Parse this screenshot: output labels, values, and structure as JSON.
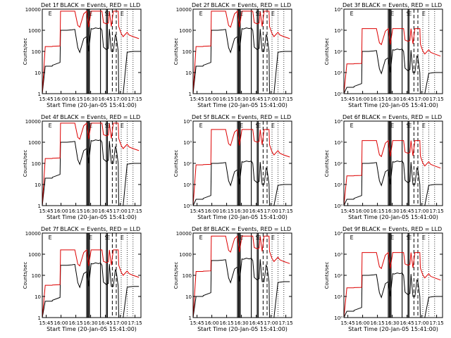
{
  "figure": {
    "layout": "3x3 grid of detector light curves"
  },
  "chart_data": [
    {
      "type": "line",
      "title": "Det 1f BLACK = Events, RED = LLD",
      "scale": "A",
      "events_level": 1,
      "lld_level": 1,
      "events_trace": [
        0,
        20,
        20,
        22,
        30,
        1000,
        1000,
        1050,
        1100,
        150,
        90,
        400,
        500,
        100,
        1200,
        1150,
        1300,
        1200,
        1300,
        1000,
        160,
        120,
        140,
        1150,
        100,
        100,
        600,
        500,
        100,
        1,
        1,
        1,
        90,
        95,
        100,
        100
      ],
      "lld_trace": [
        0,
        170,
        170,
        175,
        180,
        8000,
        8000,
        8000,
        8000,
        1700,
        1400,
        6000,
        8000,
        1400,
        8000,
        8000,
        8000,
        8000,
        8000,
        8000,
        2300,
        2000,
        2200,
        8000,
        1500,
        8000,
        8000,
        8000,
        8000,
        1500,
        700,
        500,
        800,
        600,
        500,
        400
      ]
    },
    {
      "type": "line",
      "title": "Det 2f BLACK = Events, RED = LLD",
      "scale": "A",
      "events_level": 1,
      "lld_level": 1,
      "events_trace": [
        0,
        20,
        20,
        22,
        30,
        1000,
        1000,
        1050,
        1100,
        150,
        90,
        400,
        500,
        100,
        1200,
        1150,
        1300,
        1200,
        1300,
        1000,
        160,
        120,
        140,
        1150,
        100,
        100,
        600,
        500,
        100,
        1,
        1,
        1,
        90,
        95,
        100,
        100
      ],
      "lld_trace": [
        0,
        170,
        170,
        175,
        180,
        8000,
        8000,
        8000,
        8000,
        1700,
        1400,
        6000,
        8000,
        1400,
        8000,
        8000,
        8000,
        8000,
        8000,
        8000,
        2300,
        2000,
        2200,
        8000,
        1500,
        8000,
        8000,
        8000,
        8000,
        1500,
        700,
        500,
        800,
        600,
        500,
        400
      ]
    },
    {
      "type": "line",
      "title": "Det 3f BLACK = Events, RED = LLD",
      "scale": "B",
      "events_level": 0.1,
      "lld_level": 0.15,
      "events_trace": [
        0,
        20,
        20,
        22,
        30,
        1000,
        1000,
        1050,
        1100,
        150,
        90,
        400,
        500,
        100,
        1200,
        1150,
        1300,
        1200,
        1300,
        1000,
        160,
        120,
        140,
        1150,
        100,
        100,
        600,
        500,
        100,
        1,
        1,
        1,
        90,
        95,
        100,
        100
      ],
      "lld_trace": [
        0,
        170,
        170,
        175,
        180,
        8000,
        8000,
        8000,
        8000,
        1700,
        1400,
        6000,
        8000,
        1400,
        8000,
        8000,
        8000,
        8000,
        8000,
        8000,
        2300,
        2000,
        2200,
        8000,
        1500,
        8000,
        8000,
        8000,
        8000,
        1500,
        700,
        500,
        800,
        600,
        500,
        400
      ]
    },
    {
      "type": "line",
      "title": "Det 4f BLACK = Events, RED = LLD",
      "scale": "A",
      "events_level": 1,
      "lld_level": 1,
      "events_trace": [
        0,
        20,
        20,
        22,
        30,
        1000,
        1000,
        1050,
        1100,
        150,
        90,
        400,
        500,
        100,
        1200,
        1150,
        1300,
        1200,
        1300,
        1000,
        160,
        120,
        140,
        1150,
        100,
        100,
        600,
        500,
        100,
        1,
        1,
        1,
        90,
        95,
        100,
        100
      ],
      "lld_trace": [
        0,
        170,
        170,
        175,
        180,
        8000,
        8000,
        8000,
        8000,
        1700,
        1400,
        6000,
        8000,
        1400,
        8000,
        8000,
        8000,
        8000,
        8000,
        8000,
        2300,
        2000,
        2200,
        8000,
        1500,
        8000,
        8000,
        8000,
        8000,
        1500,
        700,
        500,
        800,
        600,
        500,
        400
      ]
    },
    {
      "type": "line",
      "title": "Det 5f BLACK = Events, RED = LLD",
      "scale": "B",
      "events_level": 0.1,
      "lld_level": 0.5,
      "events_trace": [
        0,
        20,
        20,
        22,
        30,
        1000,
        1000,
        1050,
        1100,
        150,
        90,
        400,
        500,
        100,
        1200,
        1150,
        1300,
        1200,
        1300,
        1000,
        160,
        120,
        140,
        1150,
        100,
        100,
        600,
        500,
        100,
        1,
        1,
        1,
        90,
        95,
        100,
        100
      ],
      "lld_trace": [
        0,
        170,
        170,
        175,
        180,
        8000,
        8000,
        8000,
        8000,
        1700,
        1400,
        6000,
        8000,
        1400,
        8000,
        8000,
        8000,
        8000,
        8000,
        8000,
        2300,
        2000,
        2200,
        8000,
        1500,
        8000,
        8000,
        8000,
        8000,
        1500,
        700,
        500,
        800,
        600,
        500,
        400
      ]
    },
    {
      "type": "line",
      "title": "Det 6f BLACK = Events, RED = LLD",
      "scale": "B",
      "events_level": 0.1,
      "lld_level": 0.15,
      "events_trace": [
        0,
        20,
        20,
        22,
        30,
        1000,
        1000,
        1050,
        1100,
        150,
        90,
        400,
        500,
        100,
        1200,
        1150,
        1300,
        1200,
        1300,
        1000,
        160,
        120,
        140,
        1150,
        100,
        100,
        600,
        500,
        100,
        1,
        1,
        1,
        90,
        95,
        100,
        100
      ],
      "lld_trace": [
        0,
        170,
        170,
        175,
        180,
        8000,
        8000,
        8000,
        8000,
        1700,
        1400,
        6000,
        8000,
        1400,
        8000,
        8000,
        8000,
        8000,
        8000,
        8000,
        2300,
        2000,
        2200,
        8000,
        1500,
        8000,
        8000,
        8000,
        8000,
        1500,
        700,
        500,
        800,
        600,
        500,
        400
      ]
    },
    {
      "type": "line",
      "title": "Det 7f BLACK = Events, RED = LLD",
      "scale": "A",
      "events_level": 0.3,
      "lld_level": 0.2,
      "events_trace": [
        0,
        20,
        20,
        22,
        30,
        1000,
        1000,
        1050,
        1100,
        150,
        90,
        400,
        500,
        100,
        1200,
        1150,
        1300,
        1200,
        1300,
        1000,
        160,
        120,
        140,
        1150,
        100,
        100,
        600,
        500,
        100,
        1,
        1,
        1,
        90,
        95,
        100,
        100
      ],
      "lld_trace": [
        0,
        170,
        170,
        175,
        180,
        8000,
        8000,
        8000,
        8000,
        1700,
        1400,
        6000,
        8000,
        1400,
        8000,
        8000,
        8000,
        8000,
        8000,
        8000,
        2300,
        2000,
        2200,
        8000,
        1500,
        8000,
        8000,
        8000,
        8000,
        1500,
        700,
        500,
        800,
        600,
        500,
        400
      ]
    },
    {
      "type": "line",
      "title": "Det 8f BLACK = Events, RED = LLD",
      "scale": "A",
      "events_level": 0.5,
      "lld_level": 0.9,
      "events_trace": [
        0,
        20,
        20,
        22,
        30,
        1000,
        1000,
        1050,
        1100,
        150,
        90,
        400,
        500,
        100,
        1200,
        1150,
        1300,
        1200,
        1300,
        1000,
        160,
        120,
        140,
        1150,
        100,
        100,
        600,
        500,
        100,
        1,
        1,
        1,
        90,
        95,
        100,
        100
      ],
      "lld_trace": [
        0,
        170,
        170,
        175,
        180,
        8000,
        8000,
        8000,
        8000,
        1700,
        1400,
        6000,
        8000,
        1400,
        8000,
        8000,
        8000,
        8000,
        8000,
        8000,
        2300,
        2000,
        2200,
        8000,
        1500,
        8000,
        8000,
        8000,
        8000,
        1500,
        700,
        500,
        800,
        600,
        500,
        400
      ]
    },
    {
      "type": "line",
      "title": "Det 9f BLACK = Events, RED = LLD",
      "scale": "B",
      "events_level": 0.1,
      "lld_level": 0.15,
      "events_trace": [
        0,
        20,
        20,
        22,
        30,
        1000,
        1000,
        1050,
        1100,
        150,
        90,
        400,
        500,
        100,
        1200,
        1150,
        1300,
        1200,
        1300,
        1000,
        160,
        120,
        140,
        1150,
        100,
        100,
        600,
        500,
        100,
        1,
        1,
        1,
        90,
        95,
        100,
        100
      ],
      "lld_trace": [
        0,
        170,
        170,
        175,
        180,
        8000,
        8000,
        8000,
        8000,
        1700,
        1400,
        6000,
        8000,
        1400,
        8000,
        8000,
        8000,
        8000,
        8000,
        8000,
        2300,
        2000,
        2200,
        8000,
        1500,
        8000,
        8000,
        8000,
        8000,
        1500,
        700,
        500,
        800,
        600,
        500,
        400
      ]
    }
  ],
  "shared": {
    "series": [
      {
        "name": "Events",
        "color": "#000000"
      },
      {
        "name": "LLD",
        "color": "#dd0000"
      }
    ],
    "xlabel": "Start Time (20-Jan-05 15:41:00)",
    "ylabel": "Counts/sec",
    "x_ticks": [
      "15:45",
      "16:00",
      "16:15",
      "16:30",
      "16:45",
      "17:00",
      "17:15"
    ],
    "x_tick_positions_min": [
      4,
      19,
      34,
      49,
      64,
      79,
      94
    ],
    "x_range_min": [
      0,
      100
    ],
    "y_range": [
      1,
      10000
    ],
    "y_ticks_scale_A": [
      "1",
      "10",
      "100",
      "1000",
      "10000"
    ],
    "y_ticks_scale_B": [
      "10⁰",
      "10¹",
      "10²",
      "10³",
      "10⁴"
    ],
    "time_min": [
      0,
      3,
      10,
      10.3,
      18,
      18.5,
      25,
      30,
      33,
      36,
      38,
      42,
      45,
      47,
      49.5,
      51,
      54,
      57,
      59,
      60.5,
      62,
      65,
      67,
      68,
      70,
      72,
      74,
      75,
      77,
      77.5,
      80,
      82,
      86,
      88,
      92,
      98
    ],
    "solid_event_lines_min": [
      45,
      46,
      47,
      47.8,
      59,
      65,
      66
    ],
    "dashed_event_lines_min": [
      71,
      75
    ],
    "dotted_event_lines_min": [
      80,
      86,
      92
    ],
    "top_markers": [
      {
        "label": "E",
        "t": 8
      },
      {
        "label": "E",
        "t": 49
      },
      {
        "label": "S",
        "t": 65
      },
      {
        "label": "E",
        "t": 67
      },
      {
        "label": "E",
        "t": 81
      }
    ]
  }
}
